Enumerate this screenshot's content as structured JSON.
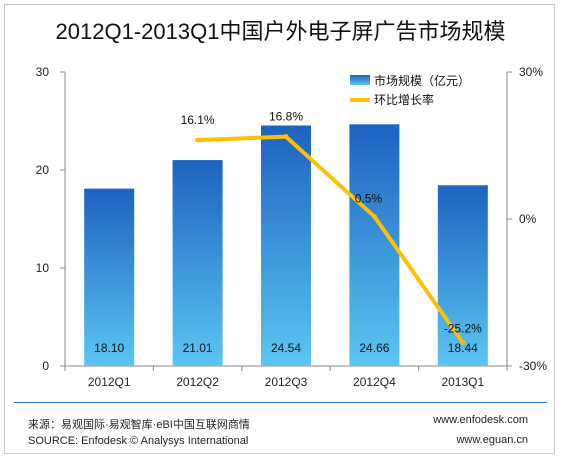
{
  "title": "2012Q1-2013Q1中国户外电子屏广告市场规模",
  "footer": {
    "source_cn": "来源：易观国际·易观智库·eBI中国互联网商情",
    "source_en": "SOURCE: Enfodesk © Analysys International",
    "url1": "www.enfodesk.com",
    "url2": "www.eguan.cn"
  },
  "colors": {
    "bar_top": "#1d62c0",
    "bar_bottom": "#5bc6f3",
    "line": "#ffc000"
  },
  "chart_data": {
    "type": "bar",
    "categories": [
      "2012Q1",
      "2012Q2",
      "2012Q3",
      "2012Q4",
      "2013Q1"
    ],
    "series": [
      {
        "name": "市场规模（亿元）",
        "type": "bar",
        "axis": "left",
        "values": [
          18.1,
          21.01,
          24.54,
          24.66,
          18.44
        ]
      },
      {
        "name": "环比增长率",
        "type": "line",
        "axis": "right",
        "values": [
          null,
          16.1,
          16.8,
          0.5,
          -25.2
        ]
      }
    ],
    "bar_labels": [
      "18.10",
      "21.01",
      "24.54",
      "24.66",
      "18.44"
    ],
    "line_labels": [
      "",
      "16.1%",
      "16.8%",
      "0.5%",
      "-25.2%"
    ],
    "y_left": {
      "ylim": [
        0,
        30
      ],
      "ticks": [
        "0",
        "10",
        "20",
        "30"
      ]
    },
    "y_right": {
      "ylim": [
        -30,
        30
      ],
      "ticks": [
        "-30%",
        "0%",
        "30%"
      ],
      "tick_values": [
        -30,
        0,
        30
      ]
    },
    "grid": false,
    "legend_position": "top-right"
  }
}
